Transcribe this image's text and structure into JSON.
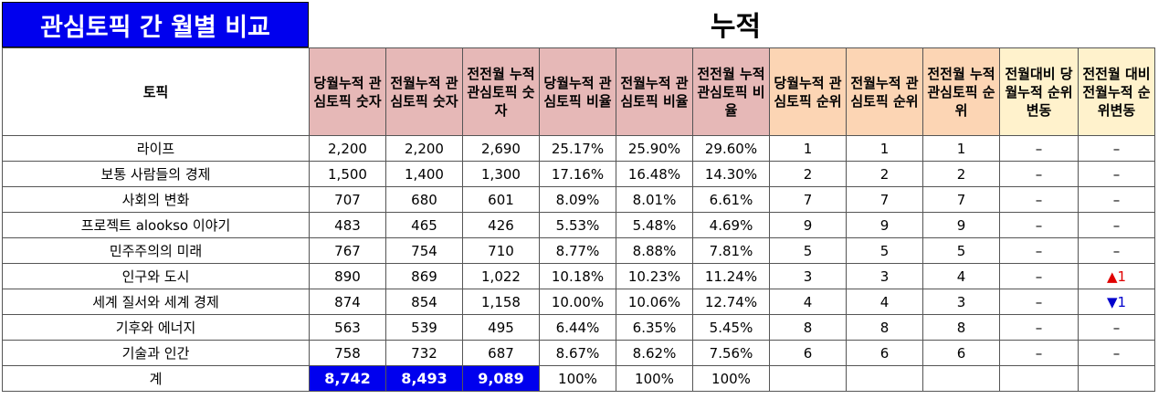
{
  "title": "관심토픽 간 월별 비교",
  "section_header": "누적",
  "columns": [
    "토픽",
    "당월누적 관심토픽 숫자",
    "전월누적 관심토픽 숫자",
    "전전월 누적 관심토픽 숫자",
    "당월누적 관심토픽 비율",
    "전월누적 관심토픽 비율",
    "전전월 누적 관심토픽 비율",
    "당월누적 관심토픽 순위",
    "전월누적 관심토픽 순위",
    "전전월 누적 관심토픽 순위",
    "전월대비 당월누적 순위변동",
    "전전월 대비 전월누적 순위변동"
  ],
  "rows": [
    {
      "topic": "라이프",
      "c1": "2,200",
      "c2": "2,200",
      "c3": "2,690",
      "r1": "25.17%",
      "r2": "25.90%",
      "r3": "29.60%",
      "k1": "1",
      "k2": "1",
      "k3": "1",
      "d1": "–",
      "d2": "–"
    },
    {
      "topic": "보통 사람들의 경제",
      "c1": "1,500",
      "c2": "1,400",
      "c3": "1,300",
      "r1": "17.16%",
      "r2": "16.48%",
      "r3": "14.30%",
      "k1": "2",
      "k2": "2",
      "k3": "2",
      "d1": "–",
      "d2": "–"
    },
    {
      "topic": "사회의 변화",
      "c1": "707",
      "c2": "680",
      "c3": "601",
      "r1": "8.09%",
      "r2": "8.01%",
      "r3": "6.61%",
      "k1": "7",
      "k2": "7",
      "k3": "7",
      "d1": "–",
      "d2": "–"
    },
    {
      "topic": "프로젝트 alookso 이야기",
      "c1": "483",
      "c2": "465",
      "c3": "426",
      "r1": "5.53%",
      "r2": "5.48%",
      "r3": "4.69%",
      "k1": "9",
      "k2": "9",
      "k3": "9",
      "d1": "–",
      "d2": "–"
    },
    {
      "topic": "민주주의의 미래",
      "c1": "767",
      "c2": "754",
      "c3": "710",
      "r1": "8.77%",
      "r2": "8.88%",
      "r3": "7.81%",
      "k1": "5",
      "k2": "5",
      "k3": "5",
      "d1": "–",
      "d2": "–"
    },
    {
      "topic": "인구와 도시",
      "c1": "890",
      "c2": "869",
      "c3": "1,022",
      "r1": "10.18%",
      "r2": "10.23%",
      "r3": "11.24%",
      "k1": "3",
      "k2": "3",
      "k3": "4",
      "d1": "–",
      "d2": "▲1"
    },
    {
      "topic": "세계 질서와 세계 경제",
      "c1": "874",
      "c2": "854",
      "c3": "1,158",
      "r1": "10.00%",
      "r2": "10.06%",
      "r3": "12.74%",
      "k1": "4",
      "k2": "4",
      "k3": "3",
      "d1": "–",
      "d2": "▼1"
    },
    {
      "topic": "기후와 에너지",
      "c1": "563",
      "c2": "539",
      "c3": "495",
      "r1": "6.44%",
      "r2": "6.35%",
      "r3": "5.45%",
      "k1": "8",
      "k2": "8",
      "k3": "8",
      "d1": "–",
      "d2": "–"
    },
    {
      "topic": "기술과 인간",
      "c1": "758",
      "c2": "732",
      "c3": "687",
      "r1": "8.67%",
      "r2": "8.62%",
      "r3": "7.56%",
      "k1": "6",
      "k2": "6",
      "k3": "6",
      "d1": "–",
      "d2": "–"
    }
  ],
  "total": {
    "label": "계",
    "c1": "8,742",
    "c2": "8,493",
    "c3": "9,089",
    "r1": "100%",
    "r2": "100%",
    "r3": "100%"
  },
  "colors": {
    "title_bg": "#0000ee",
    "pink": "#e6b8b7",
    "peach": "#fcd5b4",
    "cream": "#fff2cc",
    "up": "#e00000",
    "down": "#0000cc"
  }
}
